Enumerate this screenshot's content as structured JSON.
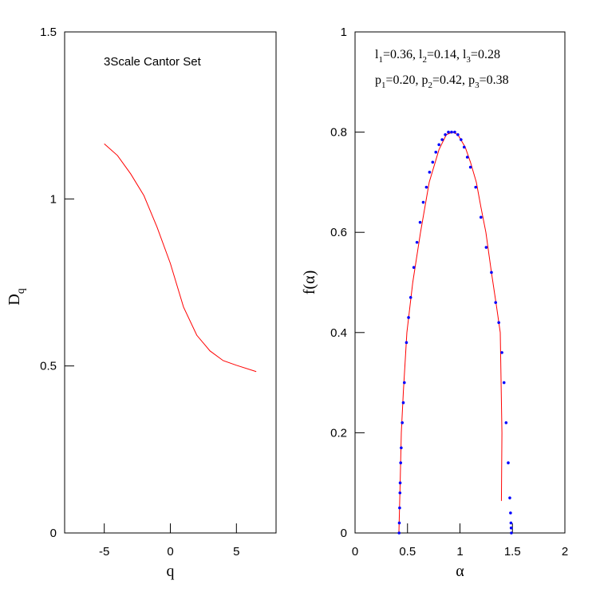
{
  "chart_data": [
    {
      "type": "line",
      "title": "3Scale Cantor Set",
      "xlabel": "q",
      "ylabel": [
        "D",
        "q"
      ],
      "xlim": [
        -8,
        8
      ],
      "ylim": [
        0,
        1.5
      ],
      "xticks": [
        -5,
        0,
        5
      ],
      "yticks": [
        0,
        0.5,
        1,
        1.5
      ],
      "series": [
        {
          "color": "#ff0000",
          "marker": "line",
          "x": [
            -5,
            -4,
            -3,
            -2,
            -1,
            0,
            1,
            2,
            3,
            4,
            5,
            6.5
          ],
          "values": [
            1.165,
            1.13,
            1.075,
            1.01,
            0.915,
            0.807,
            0.676,
            0.592,
            0.545,
            0.516,
            0.502,
            0.483
          ]
        }
      ]
    },
    {
      "type": "line",
      "xlabel": "α",
      "ylabel": "f(α)",
      "xlim": [
        0,
        2
      ],
      "ylim": [
        0,
        1
      ],
      "xticks": [
        0,
        0.5,
        1,
        1.5,
        2
      ],
      "yticks": [
        0,
        0.2,
        0.4,
        0.6,
        0.8,
        1
      ],
      "annotations": [
        [
          [
            "l",
            "1",
            "=0.36,  "
          ],
          [
            "l",
            "2",
            "=0.14,  "
          ],
          [
            "l",
            "3",
            "=0.28"
          ]
        ],
        [
          [
            "p",
            "1",
            "=0.20,  "
          ],
          [
            "p",
            "2",
            "=0.42,  "
          ],
          [
            "p",
            "3",
            "=0.38"
          ]
        ]
      ],
      "series": [
        {
          "color": "#ff0000",
          "marker": "line",
          "x": [
            0.418,
            0.43,
            0.441,
            0.46,
            0.494,
            0.55,
            0.624,
            0.707,
            0.8,
            0.87,
            0.93,
            0.98,
            1.05,
            1.1,
            1.156,
            1.2,
            1.247,
            1.3,
            1.35,
            1.384,
            1.4,
            1.395
          ],
          "values": [
            0,
            0.1,
            0.2,
            0.28,
            0.4,
            0.5,
            0.6,
            0.7,
            0.765,
            0.795,
            0.8,
            0.795,
            0.77,
            0.74,
            0.7,
            0.65,
            0.6,
            0.52,
            0.45,
            0.4,
            0.2,
            0.064
          ]
        },
        {
          "color": "#0000ff",
          "marker": "dots",
          "x": [
            0.42,
            0.422,
            0.425,
            0.428,
            0.43,
            0.435,
            0.44,
            0.45,
            0.46,
            0.47,
            0.49,
            0.51,
            0.53,
            0.56,
            0.59,
            0.62,
            0.65,
            0.68,
            0.71,
            0.74,
            0.77,
            0.8,
            0.83,
            0.86,
            0.89,
            0.92,
            0.95,
            0.98,
            1.01,
            1.04,
            1.07,
            1.1,
            1.15,
            1.2,
            1.25,
            1.3,
            1.34,
            1.37,
            1.4,
            1.42,
            1.44,
            1.46,
            1.475,
            1.482,
            1.486,
            1.488,
            1.49
          ],
          "values": [
            0,
            0.02,
            0.05,
            0.08,
            0.1,
            0.14,
            0.17,
            0.22,
            0.26,
            0.3,
            0.38,
            0.43,
            0.47,
            0.53,
            0.58,
            0.62,
            0.66,
            0.69,
            0.72,
            0.74,
            0.76,
            0.775,
            0.785,
            0.795,
            0.8,
            0.8,
            0.8,
            0.795,
            0.785,
            0.77,
            0.75,
            0.73,
            0.69,
            0.63,
            0.57,
            0.52,
            0.46,
            0.42,
            0.36,
            0.3,
            0.22,
            0.14,
            0.07,
            0.04,
            0.02,
            0.01,
            0
          ]
        }
      ]
    }
  ]
}
